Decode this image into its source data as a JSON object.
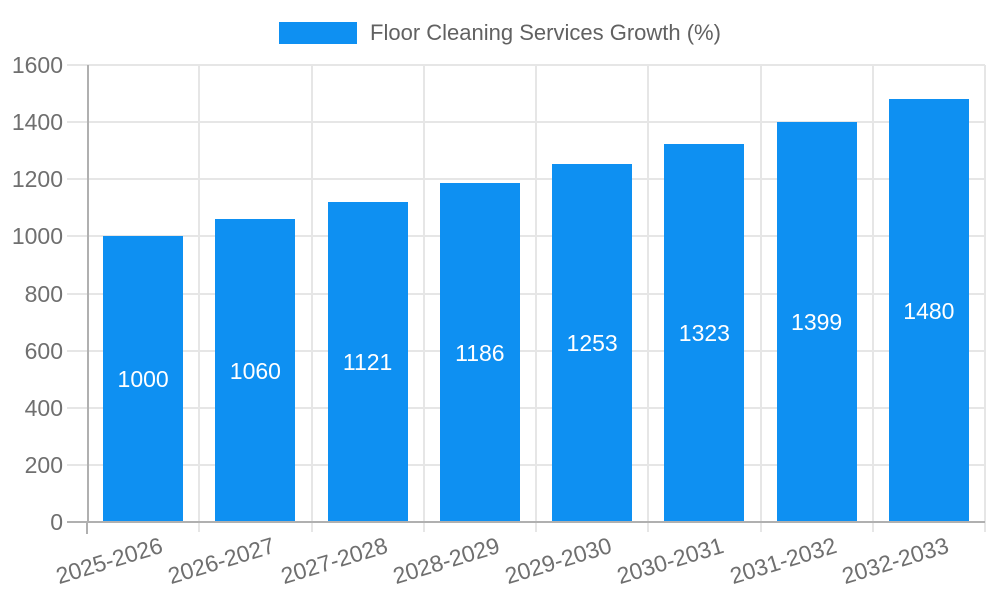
{
  "legend": {
    "label": "Floor Cleaning Services Growth (%)"
  },
  "chart_data": {
    "type": "bar",
    "title": "Floor Cleaning Services Growth (%)",
    "categories": [
      "2025-2026",
      "2026-2027",
      "2027-2028",
      "2028-2029",
      "2029-2030",
      "2030-2031",
      "2031-2032",
      "2032-2033"
    ],
    "values": [
      1000,
      1060,
      1121,
      1186,
      1253,
      1323,
      1399,
      1480
    ],
    "xlabel": "",
    "ylabel": "",
    "ylim": [
      0,
      1600
    ],
    "ytick_step": 200,
    "yticks": [
      0,
      200,
      400,
      600,
      800,
      1000,
      1200,
      1400,
      1600
    ],
    "grid": true,
    "legend_position": "top-center",
    "value_labels": "inside-center",
    "bar_color": "#0e90f2",
    "value_label_color": "#ffffff"
  },
  "style": {
    "background": "#ffffff",
    "grid_color": "#e6e6e6",
    "axis_color": "#b0b0b0",
    "tick_label_color": "#6f6f6f",
    "legend_text_color": "#616161"
  }
}
